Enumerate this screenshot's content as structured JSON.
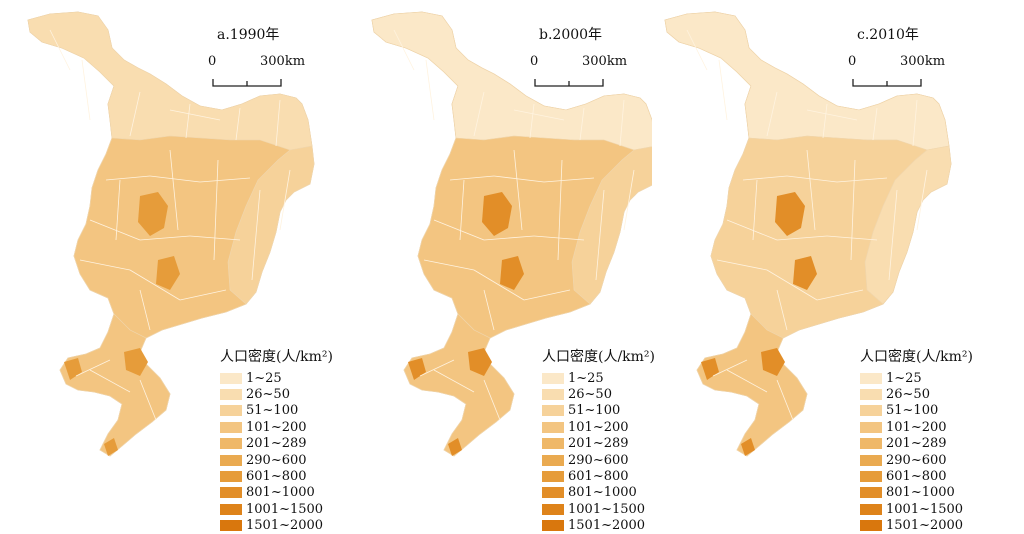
{
  "panels": [
    {
      "title": "a.1990年"
    },
    {
      "title": "b.2000年"
    },
    {
      "title": "c.2010年"
    }
  ],
  "scale": {
    "start": "0",
    "end": "300km"
  },
  "legend": {
    "title": "人口密度(人/km²)",
    "classes": [
      {
        "label": "1~25",
        "color": "#fbe8c8"
      },
      {
        "label": "26~50",
        "color": "#f9ddb0"
      },
      {
        "label": "51~100",
        "color": "#f6d29a"
      },
      {
        "label": "101~200",
        "color": "#f3c581"
      },
      {
        "label": "201~289",
        "color": "#efb868"
      },
      {
        "label": "290~600",
        "color": "#eaaa50"
      },
      {
        "label": "601~800",
        "color": "#e69c3a"
      },
      {
        "label": "801~1000",
        "color": "#e28e28"
      },
      {
        "label": "1001~1500",
        "color": "#de831a"
      },
      {
        "label": "1501~2000",
        "color": "#d9770d"
      }
    ]
  },
  "density_class_by_panel": {
    "a.1990年": {
      "north": 1,
      "central_belt": 3,
      "east": 2,
      "south_liaoning": 3,
      "cores": 6
    },
    "b.2000年": {
      "north": 0,
      "central_belt": 3,
      "east": 2,
      "south_liaoning": 3,
      "cores": 7
    },
    "c.2010年": {
      "north": 0,
      "central_belt": 2,
      "east": 1,
      "south_liaoning": 3,
      "cores": 7
    }
  }
}
